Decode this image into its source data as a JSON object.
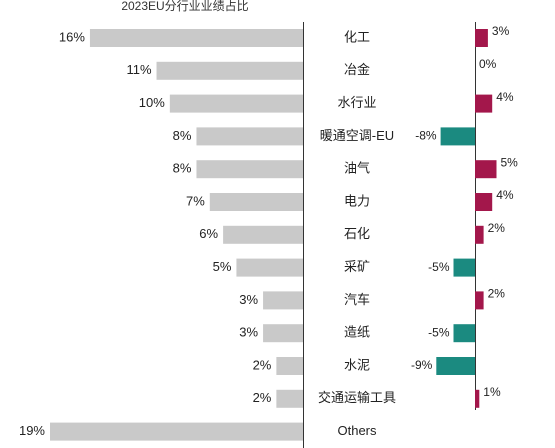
{
  "chart_data": [
    {
      "type": "bar",
      "orientation": "horizontal",
      "title": "2023EU分行业业绩占比",
      "categories": [
        "化工",
        "冶金",
        "水行业",
        "暖通空调-EU",
        "油气",
        "电力",
        "石化",
        "采矿",
        "汽车",
        "造纸",
        "水泥",
        "交通运输工具",
        "Others"
      ],
      "values": [
        16,
        11,
        10,
        8,
        8,
        7,
        6,
        5,
        3,
        3,
        2,
        2,
        19
      ],
      "value_labels": [
        "16%",
        "11%",
        "10%",
        "8%",
        "8%",
        "7%",
        "6%",
        "5%",
        "3%",
        "3%",
        "2%",
        "2%",
        "19%"
      ],
      "color": "#c9c9c9"
    },
    {
      "type": "bar",
      "orientation": "horizontal",
      "values": [
        3,
        0,
        4,
        -8,
        5,
        4,
        2,
        -5,
        2,
        -5,
        -9,
        1,
        null
      ],
      "value_labels": [
        "3%",
        "0%",
        "4%",
        "-8%",
        "5%",
        "4%",
        "2%",
        "-5%",
        "2%",
        "-5%",
        "-9%",
        "1%",
        null
      ],
      "color": "#a3174b",
      "negative_color": "#1b8a80"
    }
  ]
}
